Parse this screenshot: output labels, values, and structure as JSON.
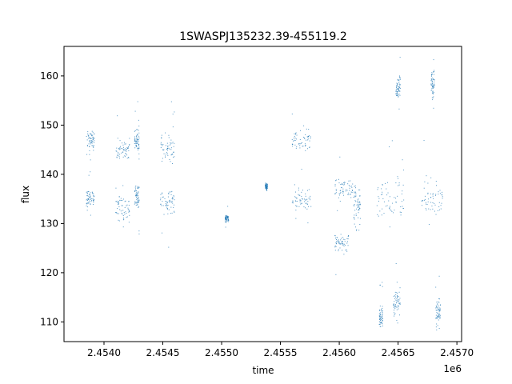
{
  "chart_data": {
    "type": "scatter",
    "title": "1SWASPJ135232.39-455119.2",
    "xlabel": "time",
    "ylabel": "flux",
    "x_offset_label": "1e6",
    "xlim": [
      2.45366,
      2.45704
    ],
    "ylim": [
      106,
      166
    ],
    "x_ticks": [
      2.454,
      2.4545,
      2.455,
      2.4555,
      2.456,
      2.4565,
      2.457
    ],
    "x_tick_labels": [
      "2.4540",
      "2.4545",
      "2.4550",
      "2.4555",
      "2.4560",
      "2.4565",
      "2.4570"
    ],
    "y_ticks": [
      110,
      120,
      130,
      140,
      150,
      160
    ],
    "y_tick_labels": [
      "110",
      "120",
      "130",
      "140",
      "150",
      "160"
    ],
    "grid": false,
    "legend": "none",
    "marker_color": "#1f77b4",
    "series": [
      {
        "clusters": [
          {
            "x": [
              2.45385,
              2.45392
            ],
            "y": 147.0,
            "spread": 1.2
          },
          {
            "x": [
              2.45385,
              2.45392
            ],
            "y": 135.0,
            "spread": 1.2
          },
          {
            "x": [
              2.4541,
              2.45422
            ],
            "y": 145.0,
            "spread": 1.6
          },
          {
            "x": [
              2.4541,
              2.45422
            ],
            "y": 133.0,
            "spread": 1.8
          },
          {
            "x": [
              2.45426,
              2.4543
            ],
            "y": 147.0,
            "spread": 1.6
          },
          {
            "x": [
              2.45426,
              2.4543
            ],
            "y": 135.5,
            "spread": 1.6
          },
          {
            "x": [
              2.45448,
              2.4546
            ],
            "y": 145.0,
            "spread": 2.0
          },
          {
            "x": [
              2.45448,
              2.4546
            ],
            "y": 134.0,
            "spread": 2.2
          },
          {
            "x": [
              2.45503,
              2.45506
            ],
            "y": 131.0,
            "spread": 0.6
          },
          {
            "x": [
              2.45537,
              2.45539
            ],
            "y": 137.5,
            "spread": 0.5
          },
          {
            "x": [
              2.4556,
              2.45576
            ],
            "y": 147.0,
            "spread": 1.4
          },
          {
            "x": [
              2.4556,
              2.45576
            ],
            "y": 135.0,
            "spread": 1.4
          },
          {
            "x": [
              2.45596,
              2.45612
            ],
            "y": 137.0,
            "spread": 1.6
          },
          {
            "x": [
              2.45596,
              2.45608
            ],
            "y": 126.0,
            "spread": 1.4
          },
          {
            "x": [
              2.45612,
              2.45618
            ],
            "y": 134.0,
            "spread": 3.0
          },
          {
            "x": [
              2.45632,
              2.45655
            ],
            "y": 135.0,
            "spread": 3.2
          },
          {
            "x": [
              2.45634,
              2.45637
            ],
            "y": 111.0,
            "spread": 1.5
          },
          {
            "x": [
              2.45646,
              2.45652
            ],
            "y": 114.0,
            "spread": 2.0
          },
          {
            "x": [
              2.45648,
              2.45652
            ],
            "y": 158.0,
            "spread": 1.8
          },
          {
            "x": [
              2.4567,
              2.45688
            ],
            "y": 135.0,
            "spread": 2.6
          },
          {
            "x": [
              2.45678,
              2.45681
            ],
            "y": 158.0,
            "spread": 2.5
          },
          {
            "x": [
              2.45682,
              2.45686
            ],
            "y": 112.0,
            "spread": 2.0
          }
        ]
      }
    ]
  }
}
